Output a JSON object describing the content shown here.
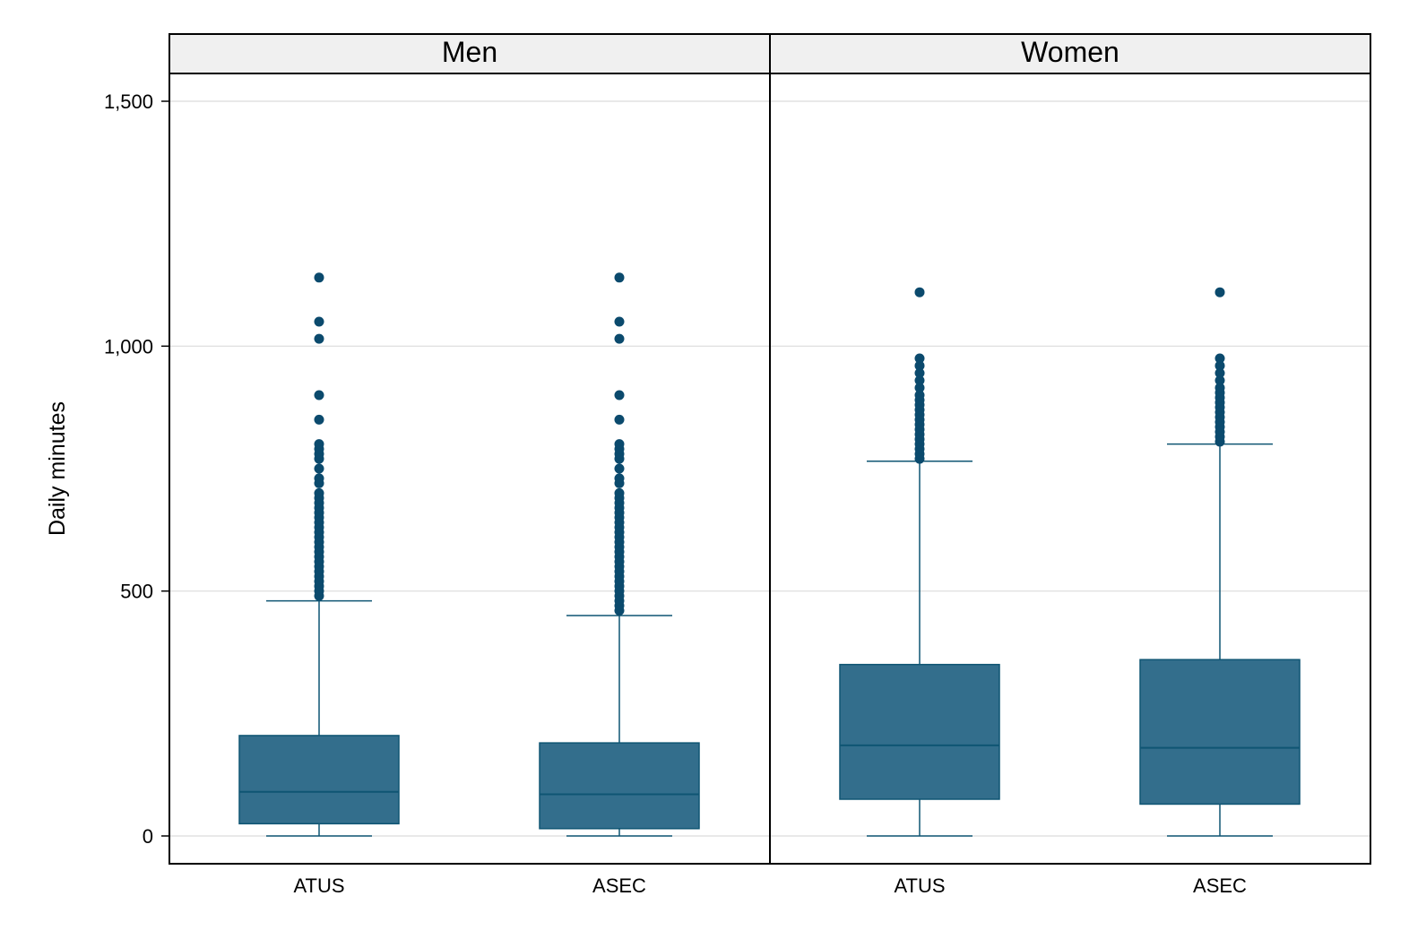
{
  "chart_data": {
    "type": "box",
    "ylabel": "Daily minutes",
    "ylim": [
      -55,
      1530
    ],
    "yticks": [
      0,
      500,
      1000,
      1500
    ],
    "ytick_labels": [
      "0",
      "500",
      "1,000",
      "1,500"
    ],
    "grid": true,
    "colors": {
      "box_fill": "#336e8c",
      "box_line": "#0f5573",
      "outlier": "#0b4a6d",
      "grid": "#dcdcdc",
      "strip_bg": "#f0f0f0"
    },
    "panels": [
      {
        "title": "Men",
        "groups": [
          {
            "label": "ATUS",
            "whisker_low": 0,
            "q1": 25,
            "median": 90,
            "q3": 205,
            "whisker_high": 480,
            "outliers": [
              490,
              500,
              510,
              520,
              530,
              540,
              550,
              560,
              570,
              580,
              590,
              600,
              610,
              620,
              630,
              640,
              650,
              660,
              670,
              680,
              690,
              700,
              720,
              730,
              750,
              770,
              780,
              790,
              800,
              850,
              900,
              1015,
              1050,
              1140
            ]
          },
          {
            "label": "ASEC",
            "whisker_low": 0,
            "q1": 15,
            "median": 85,
            "q3": 190,
            "whisker_high": 450,
            "outliers": [
              460,
              470,
              480,
              490,
              500,
              510,
              520,
              530,
              540,
              550,
              560,
              570,
              580,
              590,
              600,
              610,
              620,
              630,
              640,
              650,
              660,
              670,
              680,
              690,
              700,
              720,
              730,
              750,
              770,
              780,
              790,
              800,
              850,
              900,
              1015,
              1050,
              1140
            ]
          }
        ]
      },
      {
        "title": "Women",
        "groups": [
          {
            "label": "ATUS",
            "whisker_low": 0,
            "q1": 75,
            "median": 185,
            "q3": 350,
            "whisker_high": 765,
            "outliers": [
              770,
              780,
              790,
              800,
              810,
              820,
              830,
              840,
              850,
              860,
              870,
              880,
              890,
              900,
              915,
              930,
              945,
              960,
              975,
              1110
            ]
          },
          {
            "label": "ASEC",
            "whisker_low": 0,
            "q1": 65,
            "median": 180,
            "q3": 360,
            "whisker_high": 800,
            "outliers": [
              805,
              815,
              825,
              835,
              845,
              855,
              865,
              875,
              885,
              895,
              905,
              915,
              930,
              945,
              960,
              975,
              1110
            ]
          }
        ]
      }
    ]
  }
}
